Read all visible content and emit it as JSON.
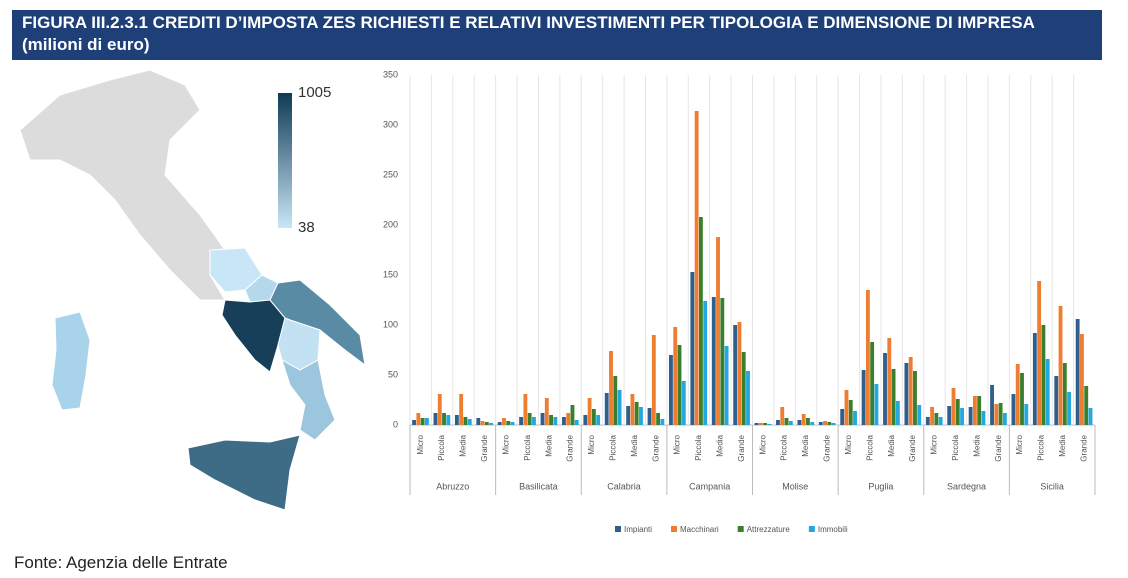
{
  "title": "FIGURA III.2.3.1 CREDITI D’IMPOSTA ZES RICHIESTI E RELATIVI INVESTIMENTI PER TIPOLOGIA E DIMENSIONE DI IMPRESA (milioni di euro)",
  "source": "Fonte: Agenzia delle Entrate",
  "chart_data": [
    {
      "type": "choropleth",
      "clim": [
        38,
        1005
      ],
      "colors": [
        "#c9e6f7",
        "#0f3a55"
      ],
      "colorbar_ticks": [
        1005,
        38
      ]
    },
    {
      "type": "bar",
      "groups": [
        "Abruzzo",
        "Basilicata",
        "Calabria",
        "Campania",
        "Molise",
        "Puglia",
        "Sardegna",
        "Sicilia"
      ],
      "categories": [
        "Micro",
        "Piccola",
        "Media",
        "Grande",
        "Micro",
        "Piccola",
        "Media",
        "Grande",
        "Micro",
        "Piccola",
        "Media",
        "Grande",
        "Micro",
        "Piccola",
        "Media",
        "Grande",
        "Micro",
        "Piccola",
        "Media",
        "Grande",
        "Micro",
        "Piccola",
        "Media",
        "Grande",
        "Micro",
        "Piccola",
        "Media",
        "Grande",
        "Micro",
        "Piccola",
        "Media",
        "Grande"
      ],
      "series": [
        {
          "name": "Impianti",
          "color": "#2f5f8c",
          "values": [
            5,
            12,
            10,
            7,
            3,
            8,
            12,
            8,
            10,
            32,
            19,
            17,
            70,
            153,
            128,
            100,
            2,
            5,
            5,
            3,
            16,
            55,
            72,
            62,
            8,
            19,
            18,
            40,
            31,
            92,
            49,
            106
          ]
        },
        {
          "name": "Macchinari",
          "color": "#ee7d31",
          "values": [
            12,
            31,
            31,
            4,
            7,
            31,
            27,
            12,
            27,
            74,
            31,
            90,
            98,
            314,
            188,
            103,
            2,
            18,
            11,
            4,
            35,
            135,
            87,
            68,
            18,
            37,
            29,
            21,
            61,
            144,
            119,
            91
          ]
        },
        {
          "name": "Attrezzature",
          "color": "#3b7f2d",
          "values": [
            7,
            12,
            8,
            3,
            4,
            12,
            10,
            20,
            16,
            49,
            23,
            12,
            80,
            208,
            127,
            73,
            2,
            7,
            7,
            3,
            25,
            83,
            56,
            54,
            12,
            26,
            29,
            22,
            52,
            100,
            62,
            39
          ]
        },
        {
          "name": "Immobili",
          "color": "#22a8df",
          "values": [
            7,
            10,
            6,
            2,
            3,
            8,
            8,
            5,
            10,
            35,
            18,
            6,
            44,
            124,
            79,
            54,
            1,
            4,
            3,
            2,
            14,
            41,
            24,
            20,
            8,
            17,
            14,
            12,
            21,
            66,
            33,
            17
          ]
        }
      ],
      "ylim": [
        0,
        350
      ],
      "yticks": [
        0,
        50,
        100,
        150,
        200,
        250,
        300,
        350
      ]
    }
  ]
}
